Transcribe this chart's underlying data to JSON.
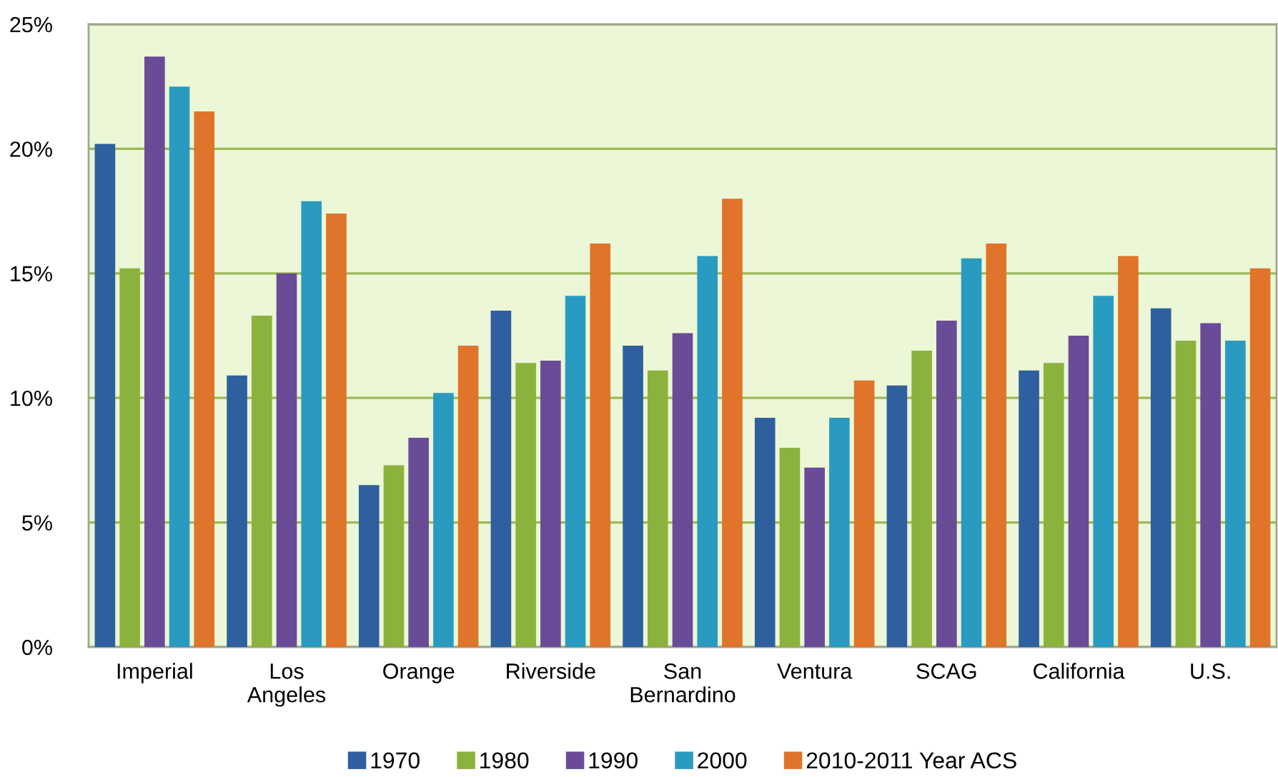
{
  "chart_data": {
    "type": "bar",
    "categories": [
      "Imperial",
      "Los Angeles",
      "Orange",
      "Riverside",
      "San Bernardino",
      "Ventura",
      "SCAG",
      "California",
      "U.S."
    ],
    "series": [
      {
        "name": "1970",
        "color": "#2f5f9f",
        "values": [
          20.2,
          10.9,
          6.5,
          13.5,
          12.1,
          9.2,
          10.5,
          11.1,
          13.6
        ]
      },
      {
        "name": "1980",
        "color": "#8cb23e",
        "values": [
          15.2,
          13.3,
          7.3,
          11.4,
          11.1,
          8.0,
          11.9,
          11.4,
          12.3
        ]
      },
      {
        "name": "1990",
        "color": "#6a4b98",
        "values": [
          23.7,
          15.0,
          8.4,
          11.5,
          12.6,
          7.2,
          13.1,
          12.5,
          13.0
        ]
      },
      {
        "name": "2000",
        "color": "#2a9bc0",
        "values": [
          22.5,
          17.9,
          10.2,
          14.1,
          15.7,
          9.2,
          15.6,
          14.1,
          12.3
        ]
      },
      {
        "name": "2010-2011 Year ACS",
        "color": "#e0742a",
        "values": [
          21.5,
          17.4,
          12.1,
          16.2,
          18.0,
          10.7,
          16.2,
          15.7,
          15.2
        ]
      }
    ],
    "ylim": [
      0,
      25
    ],
    "yticks": [
      {
        "value": 0,
        "label": "0%"
      },
      {
        "value": 5,
        "label": "5%"
      },
      {
        "value": 10,
        "label": "10%"
      },
      {
        "value": 15,
        "label": "15%"
      },
      {
        "value": 20,
        "label": "20%"
      },
      {
        "value": 25,
        "label": "25%"
      }
    ],
    "grid": "y",
    "legend": "bottom"
  }
}
